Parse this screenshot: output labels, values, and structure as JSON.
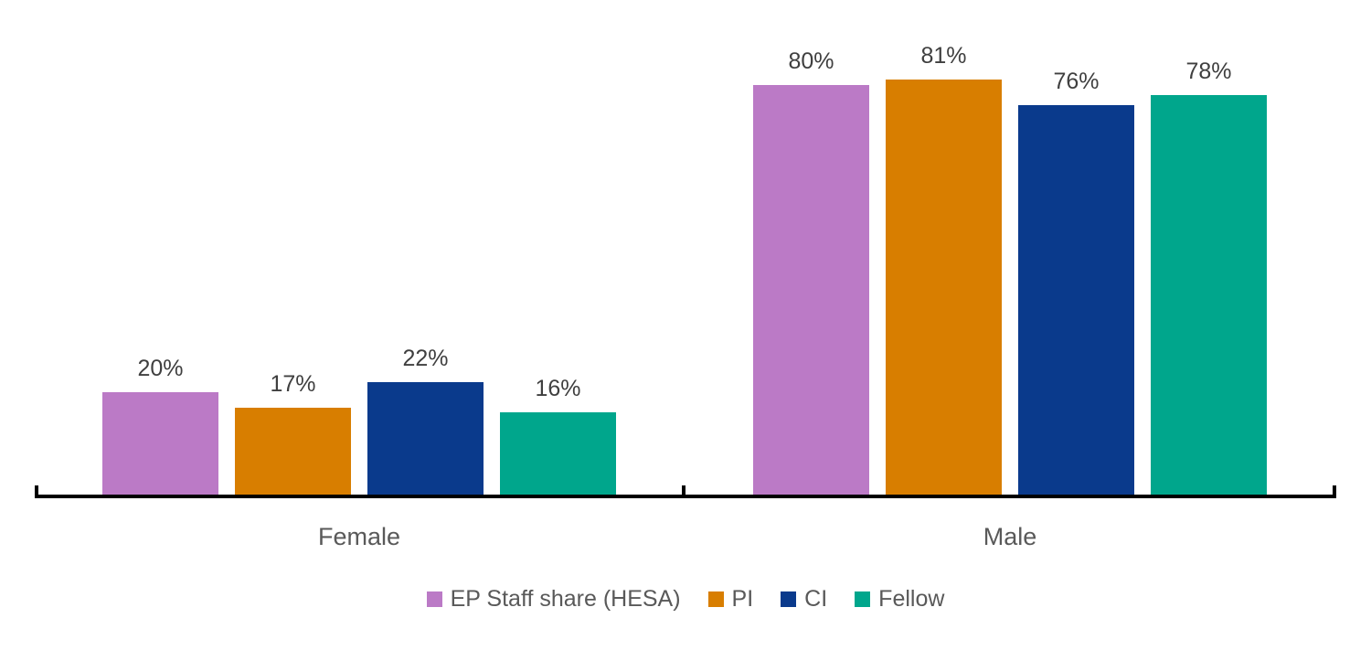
{
  "chart_data": {
    "type": "bar",
    "title": "",
    "categories": [
      "Female",
      "Male"
    ],
    "series": [
      {
        "name": "EP Staff share (HESA)",
        "color": "#bb7ac6",
        "values": [
          20,
          80
        ],
        "labels": [
          "20%",
          "80%"
        ]
      },
      {
        "name": "PI",
        "color": "#d87e00",
        "values": [
          17,
          81
        ],
        "labels": [
          "17%",
          "81%"
        ]
      },
      {
        "name": "CI",
        "color": "#0a3a8c",
        "values": [
          22,
          76
        ],
        "labels": [
          "22%",
          "76%"
        ]
      },
      {
        "name": "Fellow",
        "color": "#00a68c",
        "values": [
          16,
          78
        ],
        "labels": [
          "16%",
          "78%"
        ]
      }
    ],
    "ylim": [
      0,
      100
    ],
    "grid": false,
    "y_axis_visible": false,
    "data_labels": "percent, above bars",
    "legend_position": "bottom"
  },
  "colors": {
    "background": "#ffffff",
    "axis": "#000000",
    "value_label": "#3f3f3f",
    "category_label": "#595959",
    "legend_label": "#595959"
  }
}
